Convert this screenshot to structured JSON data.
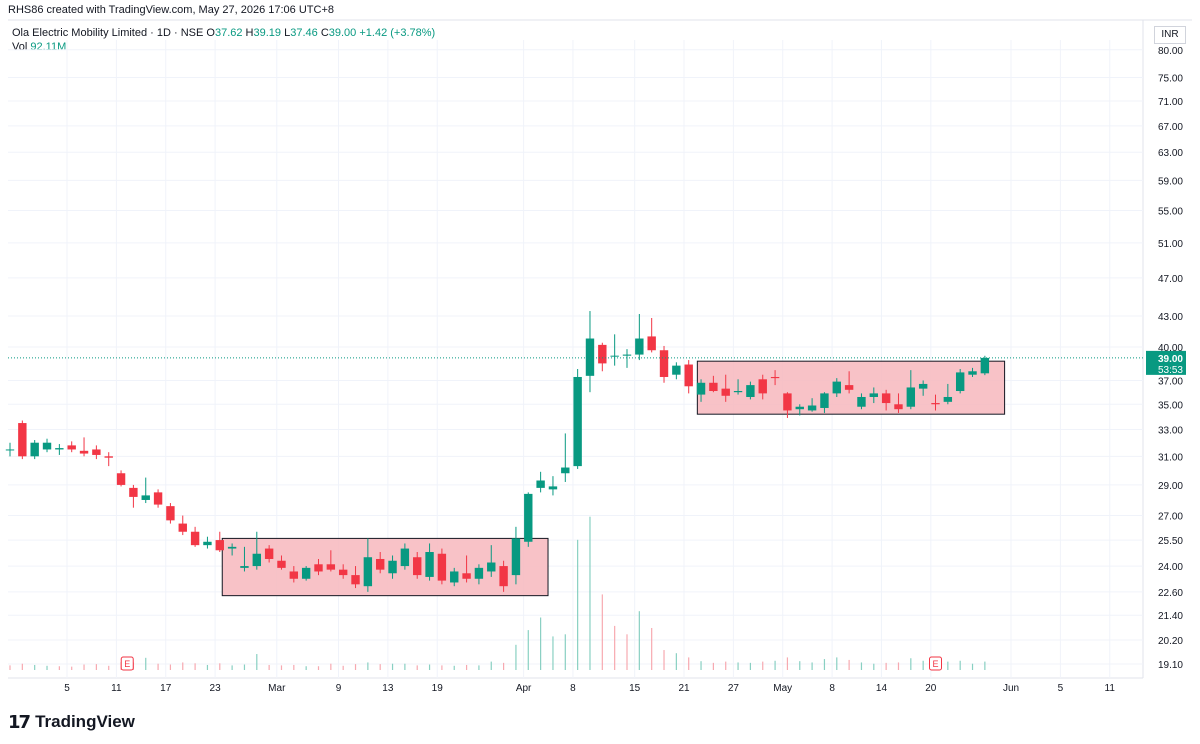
{
  "caption": "RHS86 created with TradingView.com, May 27, 2026 17:06 UTC+8",
  "legend": {
    "title": "Ola Electric Mobility Limited · 1D · NSE",
    "o_key": "O",
    "o_val": "37.62",
    "h_key": "H",
    "h_val": "39.19",
    "l_key": "L",
    "l_val": "37.46",
    "c_key": "C",
    "c_val": "39.00",
    "change": "+1.42 (+3.78%)",
    "vol_key": "Vol",
    "vol_val": "92.11M"
  },
  "currency": "INR",
  "logo": {
    "mark": "17",
    "word": "TradingView"
  },
  "earnings_label": "E",
  "colors": {
    "up": "#089981",
    "down": "#f23645",
    "zone_fill": "#f7b7bd",
    "price_line": "#089981"
  },
  "chart_data": {
    "type": "candlestick",
    "y_axis": {
      "ticks": [
        19.1,
        20.2,
        21.4,
        22.6,
        24.0,
        25.5,
        27.0,
        29.0,
        31.0,
        33.0,
        35.0,
        37.0,
        40.0,
        43.0,
        47.0,
        51.0,
        55.0,
        59.0,
        63.0,
        67.0,
        71.0,
        75.0,
        80.0
      ],
      "labels": [
        "19.10",
        "20.20",
        "21.40",
        "22.60",
        "24.00",
        "25.50",
        "27.00",
        "29.00",
        "31.00",
        "33.00",
        "35.00",
        "37.00",
        "40.00",
        "43.00",
        "47.00",
        "51.00",
        "55.00",
        "59.00",
        "63.00",
        "67.00",
        "71.00",
        "75.00",
        "80.00"
      ],
      "scale": "log"
    },
    "x_axis": {
      "labels": [
        "5",
        "11",
        "17",
        "23",
        "Mar",
        "9",
        "13",
        "19",
        "Apr",
        "8",
        "15",
        "21",
        "27",
        "May",
        "8",
        "14",
        "20",
        "Jun",
        "5",
        "11"
      ]
    },
    "last_price": {
      "value": 39.0,
      "label": "39.00",
      "countdown": "53:53"
    },
    "zones": [
      {
        "low": 22.4,
        "high": 25.6
      },
      {
        "low": 34.2,
        "high": 38.7
      }
    ],
    "candles": [
      [
        31.5,
        32.0,
        31.0,
        31.5
      ],
      [
        33.5,
        33.7,
        30.8,
        31.0
      ],
      [
        31.0,
        32.2,
        30.8,
        32.0
      ],
      [
        31.5,
        32.3,
        31.3,
        32.0
      ],
      [
        31.5,
        31.9,
        31.1,
        31.6
      ],
      [
        31.8,
        32.1,
        31.3,
        31.5
      ],
      [
        31.4,
        32.4,
        31.0,
        31.2
      ],
      [
        31.5,
        31.8,
        30.8,
        31.1
      ],
      [
        31.0,
        31.3,
        30.3,
        30.9
      ],
      [
        29.8,
        30.0,
        28.9,
        29.0
      ],
      [
        28.8,
        29.0,
        27.5,
        28.2
      ],
      [
        28.0,
        29.5,
        27.8,
        28.3
      ],
      [
        28.5,
        28.7,
        27.5,
        27.7
      ],
      [
        27.6,
        27.8,
        26.5,
        26.7
      ],
      [
        26.5,
        27.0,
        25.8,
        26.0
      ],
      [
        26.0,
        26.3,
        25.1,
        25.2
      ],
      [
        25.2,
        25.7,
        25.0,
        25.4
      ],
      [
        25.5,
        26.0,
        24.8,
        24.9
      ],
      [
        25.0,
        25.3,
        24.6,
        25.1
      ],
      [
        23.9,
        25.1,
        23.7,
        24.0
      ],
      [
        24.0,
        26.0,
        23.8,
        24.7
      ],
      [
        25.0,
        25.2,
        24.2,
        24.4
      ],
      [
        24.3,
        24.6,
        23.8,
        23.9
      ],
      [
        23.7,
        24.0,
        23.1,
        23.3
      ],
      [
        23.3,
        24.0,
        23.2,
        23.9
      ],
      [
        24.1,
        24.4,
        23.5,
        23.7
      ],
      [
        24.1,
        24.9,
        23.7,
        23.8
      ],
      [
        23.8,
        24.1,
        23.3,
        23.5
      ],
      [
        23.5,
        24.0,
        22.8,
        23.0
      ],
      [
        22.9,
        25.6,
        22.6,
        24.5
      ],
      [
        24.4,
        24.8,
        23.6,
        23.8
      ],
      [
        23.6,
        24.6,
        23.3,
        24.3
      ],
      [
        24.0,
        25.3,
        23.8,
        25.0
      ],
      [
        24.5,
        24.8,
        23.3,
        23.5
      ],
      [
        23.4,
        25.3,
        23.2,
        24.8
      ],
      [
        24.7,
        25.0,
        23.0,
        23.2
      ],
      [
        23.1,
        23.9,
        22.9,
        23.7
      ],
      [
        23.6,
        24.6,
        23.1,
        23.3
      ],
      [
        23.3,
        24.1,
        23.0,
        23.9
      ],
      [
        23.7,
        25.2,
        23.4,
        24.2
      ],
      [
        24.0,
        24.3,
        22.6,
        22.9
      ],
      [
        23.5,
        26.3,
        23.0,
        25.6
      ],
      [
        25.4,
        28.5,
        25.1,
        28.4
      ],
      [
        28.8,
        29.9,
        28.5,
        29.3
      ],
      [
        28.7,
        29.6,
        28.3,
        28.9
      ],
      [
        29.8,
        32.7,
        29.2,
        30.2
      ],
      [
        30.3,
        38.0,
        30.1,
        37.3
      ],
      [
        37.4,
        43.5,
        36.0,
        40.8
      ],
      [
        40.2,
        40.4,
        37.8,
        38.5
      ],
      [
        39.2,
        41.2,
        38.3,
        39.2
      ],
      [
        39.2,
        39.8,
        38.1,
        39.3
      ],
      [
        39.3,
        43.2,
        38.8,
        40.8
      ],
      [
        41.0,
        42.8,
        39.5,
        39.7
      ],
      [
        39.7,
        40.1,
        36.8,
        37.3
      ],
      [
        37.5,
        38.6,
        37.1,
        38.3
      ],
      [
        38.4,
        38.8,
        35.9,
        36.5
      ],
      [
        35.8,
        37.1,
        35.2,
        36.8
      ],
      [
        36.8,
        37.4,
        36.0,
        36.1
      ],
      [
        36.3,
        37.5,
        35.2,
        35.7
      ],
      [
        36.0,
        37.1,
        35.8,
        36.1
      ],
      [
        35.6,
        36.9,
        35.4,
        36.6
      ],
      [
        37.1,
        37.5,
        35.4,
        35.9
      ],
      [
        37.3,
        37.9,
        36.6,
        37.2
      ],
      [
        35.9,
        36.0,
        33.9,
        34.5
      ],
      [
        34.6,
        35.0,
        34.1,
        34.8
      ],
      [
        34.5,
        35.5,
        34.4,
        34.9
      ],
      [
        34.7,
        36.0,
        34.3,
        35.9
      ],
      [
        35.9,
        37.2,
        35.6,
        36.9
      ],
      [
        36.6,
        37.8,
        35.9,
        36.2
      ],
      [
        34.8,
        35.9,
        34.6,
        35.6
      ],
      [
        35.6,
        36.4,
        35.1,
        35.9
      ],
      [
        35.9,
        36.2,
        34.5,
        35.1
      ],
      [
        35.0,
        35.9,
        34.3,
        34.6
      ],
      [
        34.8,
        37.9,
        34.6,
        36.4
      ],
      [
        36.3,
        37.0,
        35.7,
        36.7
      ],
      [
        35.1,
        35.8,
        34.5,
        35.0
      ],
      [
        35.2,
        36.7,
        35.0,
        35.6
      ],
      [
        36.1,
        38.0,
        35.9,
        37.7
      ],
      [
        37.5,
        38.1,
        37.3,
        37.8
      ],
      [
        37.62,
        39.19,
        37.46,
        39.0
      ]
    ],
    "volume": [
      [
        0,
        0.22,
        "d"
      ],
      [
        1,
        0.3,
        "d"
      ],
      [
        2,
        0.24,
        "u"
      ],
      [
        3,
        0.2,
        "u"
      ],
      [
        4,
        0.18,
        "d"
      ],
      [
        5,
        0.16,
        "d"
      ],
      [
        6,
        0.26,
        "d"
      ],
      [
        7,
        0.28,
        "d"
      ],
      [
        8,
        0.2,
        "d"
      ],
      [
        9,
        0.38,
        "d"
      ],
      [
        10,
        0.36,
        "d"
      ],
      [
        11,
        0.58,
        "u"
      ],
      [
        12,
        0.3,
        "d"
      ],
      [
        13,
        0.26,
        "d"
      ],
      [
        14,
        0.36,
        "d"
      ],
      [
        15,
        0.32,
        "d"
      ],
      [
        16,
        0.24,
        "u"
      ],
      [
        17,
        0.32,
        "d"
      ],
      [
        18,
        0.22,
        "u"
      ],
      [
        19,
        0.26,
        "u"
      ],
      [
        20,
        0.76,
        "u"
      ],
      [
        21,
        0.24,
        "d"
      ],
      [
        22,
        0.22,
        "d"
      ],
      [
        23,
        0.24,
        "d"
      ],
      [
        24,
        0.18,
        "u"
      ],
      [
        25,
        0.18,
        "d"
      ],
      [
        26,
        0.3,
        "d"
      ],
      [
        27,
        0.2,
        "d"
      ],
      [
        28,
        0.28,
        "d"
      ],
      [
        29,
        0.36,
        "u"
      ],
      [
        30,
        0.28,
        "d"
      ],
      [
        31,
        0.3,
        "u"
      ],
      [
        32,
        0.3,
        "u"
      ],
      [
        33,
        0.22,
        "d"
      ],
      [
        34,
        0.26,
        "u"
      ],
      [
        35,
        0.22,
        "d"
      ],
      [
        36,
        0.2,
        "u"
      ],
      [
        37,
        0.24,
        "d"
      ],
      [
        38,
        0.22,
        "u"
      ],
      [
        39,
        0.4,
        "u"
      ],
      [
        40,
        0.34,
        "d"
      ],
      [
        41,
        1.2,
        "u"
      ],
      [
        42,
        1.9,
        "u"
      ],
      [
        43,
        2.5,
        "u"
      ],
      [
        44,
        1.6,
        "u"
      ],
      [
        45,
        1.7,
        "u"
      ],
      [
        46,
        6.2,
        "u"
      ],
      [
        47,
        7.3,
        "u"
      ],
      [
        48,
        3.6,
        "d"
      ],
      [
        49,
        2.1,
        "d"
      ],
      [
        50,
        1.7,
        "d"
      ],
      [
        51,
        2.8,
        "u"
      ],
      [
        52,
        2.0,
        "d"
      ],
      [
        53,
        0.95,
        "d"
      ],
      [
        54,
        0.8,
        "u"
      ],
      [
        55,
        0.6,
        "d"
      ],
      [
        56,
        0.42,
        "u"
      ],
      [
        57,
        0.34,
        "d"
      ],
      [
        58,
        0.4,
        "d"
      ],
      [
        59,
        0.36,
        "u"
      ],
      [
        60,
        0.34,
        "u"
      ],
      [
        61,
        0.4,
        "d"
      ],
      [
        62,
        0.44,
        "u"
      ],
      [
        63,
        0.6,
        "d"
      ],
      [
        64,
        0.42,
        "u"
      ],
      [
        65,
        0.36,
        "u"
      ],
      [
        66,
        0.52,
        "u"
      ],
      [
        67,
        0.6,
        "u"
      ],
      [
        68,
        0.48,
        "d"
      ],
      [
        69,
        0.36,
        "u"
      ],
      [
        70,
        0.3,
        "u"
      ],
      [
        71,
        0.34,
        "d"
      ],
      [
        72,
        0.36,
        "d"
      ],
      [
        73,
        0.56,
        "u"
      ],
      [
        74,
        0.44,
        "u"
      ],
      [
        75,
        0.3,
        "d"
      ],
      [
        76,
        0.4,
        "u"
      ],
      [
        77,
        0.44,
        "u"
      ],
      [
        78,
        0.3,
        "u"
      ],
      [
        79,
        0.4,
        "u"
      ]
    ]
  }
}
